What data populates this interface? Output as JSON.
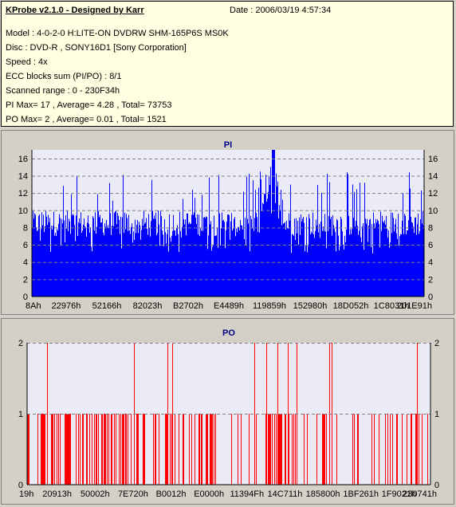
{
  "header": {
    "title": "KProbe v2.1.0 - Designed by Karr",
    "date": "Date : 2006/03/19 4:57:34"
  },
  "info": {
    "model": "Model : 4-0-2-0 H:LITE-ON DVDRW SHM-165P6S MS0K",
    "disc": "Disc : DVD-R , SONY16D1 [Sony Corporation]",
    "speed": "Speed : 4x",
    "ecc": "ECC blocks sum (PI/PO) : 8/1",
    "range": "Scanned range : 0 - 230F34h",
    "pi": "PI Max= 17 , Average= 4.28 , Total= 73753",
    "po": "PO Max= 2 , Average= 0.01 , Total= 1521"
  },
  "colors": {
    "pi": "#0000ff",
    "po": "#ff0000",
    "plot_bg": "#ebebf7"
  },
  "chart_data": [
    {
      "type": "bar",
      "title": "PI",
      "ylim": [
        0,
        17
      ],
      "y_ticks": [
        "0",
        "2",
        "4",
        "6",
        "8",
        "10",
        "12",
        "14",
        "16"
      ],
      "x_ticks": [
        "8Ah",
        "22976h",
        "52166h",
        "82023h",
        "B2702h",
        "E4489h",
        "119859h",
        "152980h",
        "18D052h",
        "1C8031h",
        "201E91h"
      ],
      "max": 17,
      "average": 4.28,
      "baseline_range": [
        7,
        10
      ],
      "peak_region": "152980h"
    },
    {
      "type": "bar",
      "title": "PO",
      "ylim": [
        0,
        2
      ],
      "y_ticks": [
        "0",
        "1",
        "2"
      ],
      "x_ticks": [
        "19h",
        "20913h",
        "50002h",
        "7E720h",
        "B0012h",
        "E0000h",
        "11394Fh",
        "14C711h",
        "185800h",
        "1BF261h",
        "1F9021h",
        "230741h"
      ],
      "max": 2,
      "average": 0.01
    }
  ]
}
